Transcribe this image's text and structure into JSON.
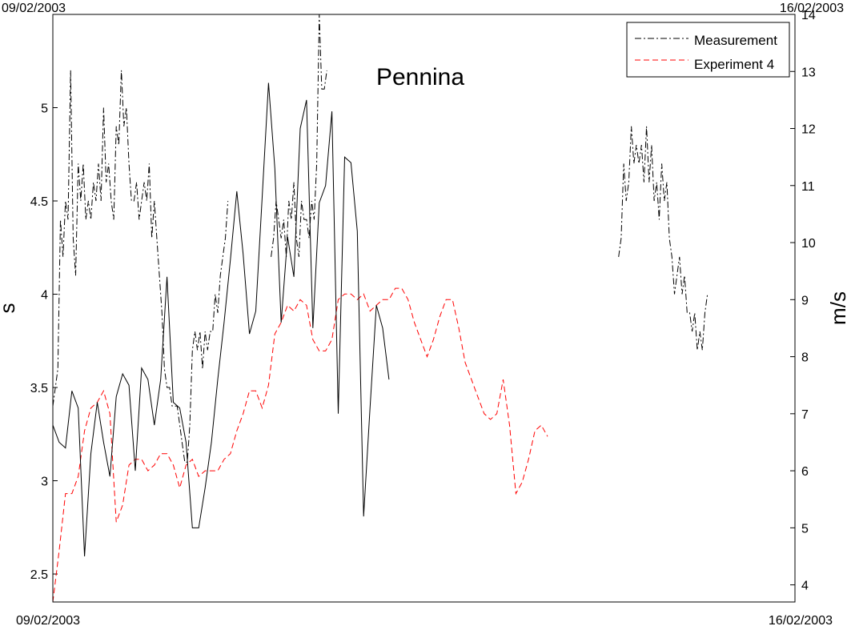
{
  "chart_data": {
    "type": "line",
    "title": "Pennina",
    "date_start": "09/02/2003",
    "date_end": "16/02/2003",
    "y_left": {
      "label": "s",
      "lim": [
        2.35,
        5.5
      ],
      "ticks": [
        2.5,
        3,
        3.5,
        4,
        4.5,
        5
      ]
    },
    "y_right": {
      "label": "m/s",
      "lim": [
        3.7,
        14
      ],
      "ticks": [
        4,
        5,
        6,
        7,
        8,
        9,
        10,
        11,
        12,
        13,
        14
      ]
    },
    "legend_position": "top-right",
    "series": [
      {
        "name": "Measurement",
        "axis": "left",
        "style": "dashdot",
        "color": "#000000",
        "segments": [
          [
            [
              0.0,
              3.4
            ],
            [
              0.04,
              3.6
            ],
            [
              0.06,
              4.4
            ],
            [
              0.08,
              4.2
            ],
            [
              0.1,
              4.5
            ],
            [
              0.12,
              4.4
            ],
            [
              0.14,
              5.2
            ],
            [
              0.16,
              4.3
            ],
            [
              0.18,
              4.1
            ],
            [
              0.2,
              4.7
            ],
            [
              0.22,
              4.5
            ],
            [
              0.24,
              4.7
            ],
            [
              0.26,
              4.4
            ],
            [
              0.28,
              4.5
            ],
            [
              0.3,
              4.4
            ],
            [
              0.32,
              4.6
            ],
            [
              0.34,
              4.5
            ],
            [
              0.36,
              4.7
            ],
            [
              0.38,
              4.5
            ],
            [
              0.4,
              5.0
            ],
            [
              0.42,
              4.6
            ],
            [
              0.44,
              4.7
            ],
            [
              0.46,
              4.5
            ],
            [
              0.48,
              4.4
            ],
            [
              0.5,
              4.9
            ],
            [
              0.52,
              4.8
            ],
            [
              0.54,
              5.2
            ],
            [
              0.56,
              4.9
            ],
            [
              0.58,
              5.0
            ],
            [
              0.6,
              4.7
            ],
            [
              0.62,
              4.5
            ],
            [
              0.64,
              4.5
            ],
            [
              0.66,
              4.6
            ],
            [
              0.68,
              4.4
            ],
            [
              0.7,
              4.5
            ],
            [
              0.72,
              4.6
            ],
            [
              0.74,
              4.5
            ],
            [
              0.76,
              4.7
            ],
            [
              0.78,
              4.3
            ],
            [
              0.8,
              4.5
            ],
            [
              0.82,
              4.3
            ],
            [
              0.84,
              4.1
            ],
            [
              0.86,
              3.9
            ],
            [
              0.88,
              3.6
            ],
            [
              0.9,
              3.5
            ],
            [
              0.92,
              3.5
            ],
            [
              0.94,
              3.4
            ],
            [
              0.96,
              3.4
            ],
            [
              0.98,
              3.4
            ],
            [
              1.0,
              3.3
            ],
            [
              1.02,
              3.2
            ],
            [
              1.04,
              3.1
            ],
            [
              1.06,
              3.1
            ],
            [
              1.08,
              3.3
            ],
            [
              1.1,
              3.7
            ],
            [
              1.12,
              3.8
            ],
            [
              1.14,
              3.7
            ],
            [
              1.16,
              3.8
            ],
            [
              1.18,
              3.6
            ],
            [
              1.2,
              3.8
            ],
            [
              1.22,
              3.7
            ],
            [
              1.24,
              3.8
            ],
            [
              1.26,
              3.8
            ],
            [
              1.28,
              4.0
            ],
            [
              1.3,
              3.9
            ],
            [
              1.32,
              4.1
            ],
            [
              1.34,
              4.2
            ],
            [
              1.36,
              4.3
            ],
            [
              1.38,
              4.5
            ]
          ],
          [
            [
              1.72,
              4.2
            ],
            [
              1.74,
              4.3
            ],
            [
              1.76,
              4.5
            ],
            [
              1.78,
              4.4
            ],
            [
              1.8,
              4.3
            ],
            [
              1.82,
              4.4
            ],
            [
              1.84,
              4.2
            ],
            [
              1.86,
              4.5
            ],
            [
              1.88,
              4.4
            ],
            [
              1.9,
              4.6
            ],
            [
              1.92,
              4.3
            ],
            [
              1.94,
              4.2
            ],
            [
              1.96,
              4.5
            ],
            [
              1.98,
              4.4
            ],
            [
              2.0,
              4.4
            ],
            [
              2.02,
              4.3
            ],
            [
              2.04,
              4.5
            ],
            [
              2.06,
              4.4
            ],
            [
              2.08,
              4.7
            ],
            [
              2.1,
              5.5
            ],
            [
              2.12,
              5.1
            ],
            [
              2.14,
              5.1
            ],
            [
              2.16,
              5.2
            ]
          ],
          [
            [
              4.46,
              4.2
            ],
            [
              4.48,
              4.3
            ],
            [
              4.5,
              4.7
            ],
            [
              4.52,
              4.5
            ],
            [
              4.54,
              4.6
            ],
            [
              4.56,
              4.9
            ],
            [
              4.58,
              4.7
            ],
            [
              4.6,
              4.8
            ],
            [
              4.62,
              4.7
            ],
            [
              4.64,
              4.8
            ],
            [
              4.66,
              4.6
            ],
            [
              4.68,
              4.9
            ],
            [
              4.7,
              4.6
            ],
            [
              4.72,
              4.8
            ],
            [
              4.74,
              4.5
            ],
            [
              4.76,
              4.6
            ],
            [
              4.78,
              4.4
            ],
            [
              4.8,
              4.7
            ],
            [
              4.82,
              4.5
            ],
            [
              4.84,
              4.6
            ],
            [
              4.86,
              4.3
            ],
            [
              4.88,
              4.2
            ],
            [
              4.9,
              4.0
            ],
            [
              4.92,
              4.1
            ],
            [
              4.94,
              4.2
            ],
            [
              4.96,
              4.0
            ],
            [
              4.98,
              4.1
            ],
            [
              5.0,
              3.9
            ],
            [
              5.02,
              3.9
            ],
            [
              5.04,
              3.8
            ],
            [
              5.06,
              3.9
            ],
            [
              5.08,
              3.7
            ],
            [
              5.1,
              3.8
            ],
            [
              5.12,
              3.7
            ],
            [
              5.14,
              3.9
            ],
            [
              5.16,
              4.0
            ]
          ]
        ]
      },
      {
        "name": "Experiment 4",
        "axis": "right",
        "style": "dashed",
        "color": "#ff0000",
        "points": [
          [
            0.0,
            3.7
          ],
          [
            0.05,
            4.6
          ],
          [
            0.1,
            5.6
          ],
          [
            0.15,
            5.6
          ],
          [
            0.2,
            5.9
          ],
          [
            0.25,
            6.7
          ],
          [
            0.3,
            7.1
          ],
          [
            0.35,
            7.2
          ],
          [
            0.4,
            7.4
          ],
          [
            0.45,
            7.0
          ],
          [
            0.5,
            5.1
          ],
          [
            0.55,
            5.4
          ],
          [
            0.6,
            6.1
          ],
          [
            0.65,
            6.2
          ],
          [
            0.7,
            6.2
          ],
          [
            0.75,
            6.0
          ],
          [
            0.8,
            6.1
          ],
          [
            0.85,
            6.3
          ],
          [
            0.9,
            6.3
          ],
          [
            0.95,
            6.1
          ],
          [
            1.0,
            5.7
          ],
          [
            1.05,
            6.1
          ],
          [
            1.1,
            6.2
          ],
          [
            1.15,
            5.9
          ],
          [
            1.2,
            6.0
          ],
          [
            1.25,
            6.0
          ],
          [
            1.3,
            6.0
          ],
          [
            1.35,
            6.2
          ],
          [
            1.4,
            6.3
          ],
          [
            1.45,
            6.7
          ],
          [
            1.5,
            7.0
          ],
          [
            1.55,
            7.4
          ],
          [
            1.6,
            7.4
          ],
          [
            1.65,
            7.1
          ],
          [
            1.7,
            7.5
          ],
          [
            1.75,
            8.4
          ],
          [
            1.8,
            8.6
          ],
          [
            1.85,
            8.9
          ],
          [
            1.9,
            8.8
          ],
          [
            1.95,
            9.0
          ],
          [
            2.0,
            8.9
          ],
          [
            2.05,
            8.3
          ],
          [
            2.1,
            8.1
          ],
          [
            2.15,
            8.1
          ],
          [
            2.2,
            8.3
          ],
          [
            2.25,
            9.0
          ],
          [
            2.3,
            9.1
          ],
          [
            2.35,
            9.1
          ],
          [
            2.4,
            9.0
          ],
          [
            2.45,
            9.1
          ],
          [
            2.5,
            8.8
          ],
          [
            2.55,
            8.9
          ],
          [
            2.6,
            9.0
          ],
          [
            2.65,
            9.0
          ],
          [
            2.7,
            9.2
          ],
          [
            2.75,
            9.2
          ],
          [
            2.8,
            9.0
          ],
          [
            2.85,
            8.6
          ],
          [
            2.9,
            8.3
          ],
          [
            2.95,
            8.0
          ],
          [
            3.0,
            8.3
          ],
          [
            3.05,
            8.7
          ],
          [
            3.1,
            9.0
          ],
          [
            3.15,
            9.0
          ],
          [
            3.2,
            8.5
          ],
          [
            3.25,
            7.9
          ],
          [
            3.3,
            7.6
          ],
          [
            3.35,
            7.3
          ],
          [
            3.4,
            7.0
          ],
          [
            3.45,
            6.9
          ],
          [
            3.5,
            7.0
          ],
          [
            3.55,
            7.6
          ],
          [
            3.6,
            6.8
          ],
          [
            3.65,
            5.6
          ],
          [
            3.7,
            5.8
          ],
          [
            3.75,
            6.2
          ],
          [
            3.8,
            6.7
          ],
          [
            3.85,
            6.8
          ],
          [
            3.9,
            6.6
          ]
        ]
      },
      {
        "name": "",
        "axis": "right",
        "style": "solid",
        "color": "#000000",
        "points": [
          [
            0.0,
            6.8
          ],
          [
            0.05,
            6.5
          ],
          [
            0.1,
            6.4
          ],
          [
            0.15,
            7.4
          ],
          [
            0.2,
            7.1
          ],
          [
            0.25,
            4.5
          ],
          [
            0.3,
            6.3
          ],
          [
            0.35,
            7.2
          ],
          [
            0.4,
            6.5
          ],
          [
            0.45,
            5.9
          ],
          [
            0.5,
            7.3
          ],
          [
            0.55,
            7.7
          ],
          [
            0.6,
            7.5
          ],
          [
            0.65,
            6.0
          ],
          [
            0.7,
            7.8
          ],
          [
            0.75,
            7.6
          ],
          [
            0.8,
            6.8
          ],
          [
            0.85,
            7.6
          ],
          [
            0.9,
            9.4
          ],
          [
            0.95,
            7.2
          ],
          [
            1.0,
            7.1
          ],
          [
            1.05,
            6.5
          ],
          [
            1.1,
            5.0
          ],
          [
            1.15,
            5.0
          ],
          [
            1.2,
            5.7
          ],
          [
            1.25,
            6.5
          ],
          [
            1.3,
            7.6
          ],
          [
            1.35,
            8.6
          ],
          [
            1.4,
            9.7
          ],
          [
            1.45,
            10.9
          ],
          [
            1.5,
            9.8
          ],
          [
            1.55,
            8.4
          ],
          [
            1.6,
            8.8
          ],
          [
            1.65,
            10.8
          ],
          [
            1.7,
            12.8
          ],
          [
            1.75,
            11.3
          ],
          [
            1.8,
            8.6
          ],
          [
            1.85,
            10.1
          ],
          [
            1.9,
            9.4
          ],
          [
            1.95,
            12.0
          ],
          [
            2.0,
            12.5
          ],
          [
            2.05,
            8.5
          ],
          [
            2.1,
            10.7
          ],
          [
            2.15,
            11.0
          ],
          [
            2.2,
            12.3
          ],
          [
            2.25,
            7.0
          ],
          [
            2.3,
            11.5
          ],
          [
            2.35,
            11.4
          ],
          [
            2.4,
            10.2
          ],
          [
            2.45,
            5.2
          ],
          [
            2.5,
            7.1
          ],
          [
            2.55,
            8.9
          ],
          [
            2.6,
            8.5
          ],
          [
            2.65,
            7.6
          ]
        ]
      }
    ]
  }
}
